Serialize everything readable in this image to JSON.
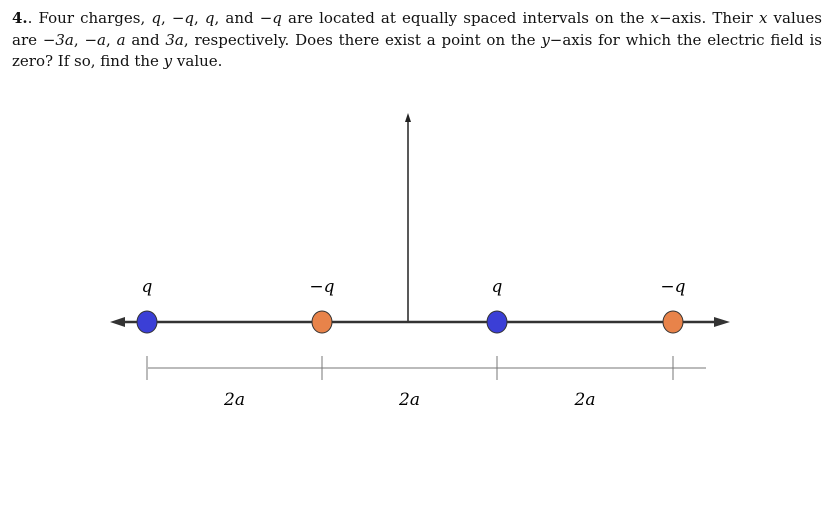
{
  "problem": {
    "number": "4.",
    "text_parts": [
      ". Four charges, ",
      "q",
      ", ",
      "−q",
      ", ",
      "q",
      ", and ",
      "−q",
      " are located at equally spaced intervals on the ",
      "x",
      "−axis. Their ",
      "x",
      " values are ",
      "−3a",
      ", ",
      "−a",
      ", ",
      "a",
      " and ",
      "3a",
      ", respectively. Does there exist a point on the ",
      "y",
      "−axis for which the electric field is zero? If so, find the ",
      "y",
      " value."
    ]
  },
  "figure": {
    "charges": [
      {
        "label": "q",
        "sign": "positive",
        "color": "#3b3fd6"
      },
      {
        "label": "−q",
        "sign": "negative",
        "color": "#e8834a"
      },
      {
        "label": "q",
        "sign": "positive",
        "color": "#3b3fd6"
      },
      {
        "label": "−q",
        "sign": "negative",
        "color": "#e8834a"
      }
    ],
    "spacings": [
      "2a",
      "2a",
      "2a"
    ]
  }
}
